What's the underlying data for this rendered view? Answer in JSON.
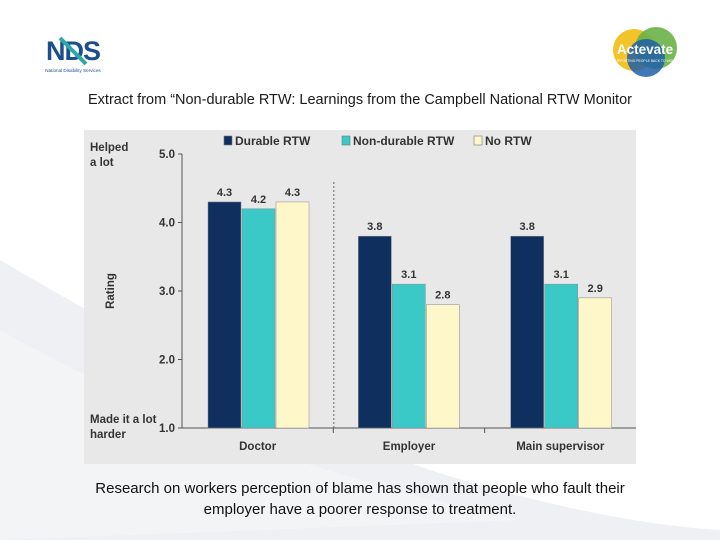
{
  "header": {
    "extract_text": "Extract from “Non-durable RTW: Learnings from the Campbell National RTW Monitor",
    "nds_logo": {
      "letters": "NDS",
      "tagline": "National Disability Services",
      "colors": [
        "#1b4e8c",
        "#2ea9a6"
      ]
    },
    "activate_logo": {
      "wordmark": "Actevate",
      "tagline": "SUPPORTING PEOPLE BACK TO WORK",
      "colors": [
        "#f2c01f",
        "#69b345",
        "#1f5fa8"
      ]
    }
  },
  "chart_data": {
    "type": "bar",
    "categories": [
      "Doctor",
      "Employer",
      "Main supervisor"
    ],
    "series": [
      {
        "name": "Durable RTW",
        "values": [
          4.3,
          3.8,
          3.8
        ],
        "color": "#0f2f5e"
      },
      {
        "name": "Non-durable RTW",
        "values": [
          4.2,
          3.1,
          3.1
        ],
        "color": "#3ac9c7"
      },
      {
        "name": "No RTW",
        "values": [
          4.3,
          2.8,
          2.9
        ],
        "color": "#fdf7c9"
      }
    ],
    "data_labels": [
      [
        "4.3",
        "3.8",
        "3.8"
      ],
      [
        "4.2",
        "3.1",
        "3.1"
      ],
      [
        "4.3",
        "2.8",
        "2.9"
      ]
    ],
    "ylabel": "Rating",
    "xlabel": "",
    "ylim": [
      1.0,
      5.0
    ],
    "yticks": [
      "1.0",
      "2.0",
      "3.0",
      "4.0",
      "5.0"
    ],
    "top_anchor_label": [
      "Helped",
      "a lot"
    ],
    "bottom_anchor_label": [
      "Made it a lot",
      "harder"
    ],
    "legend_position": "top",
    "grid": false,
    "background": "#e8e8e8"
  },
  "footer": {
    "text": "Research on workers perception of blame has shown that people who fault their employer have a poorer response to treatment."
  }
}
